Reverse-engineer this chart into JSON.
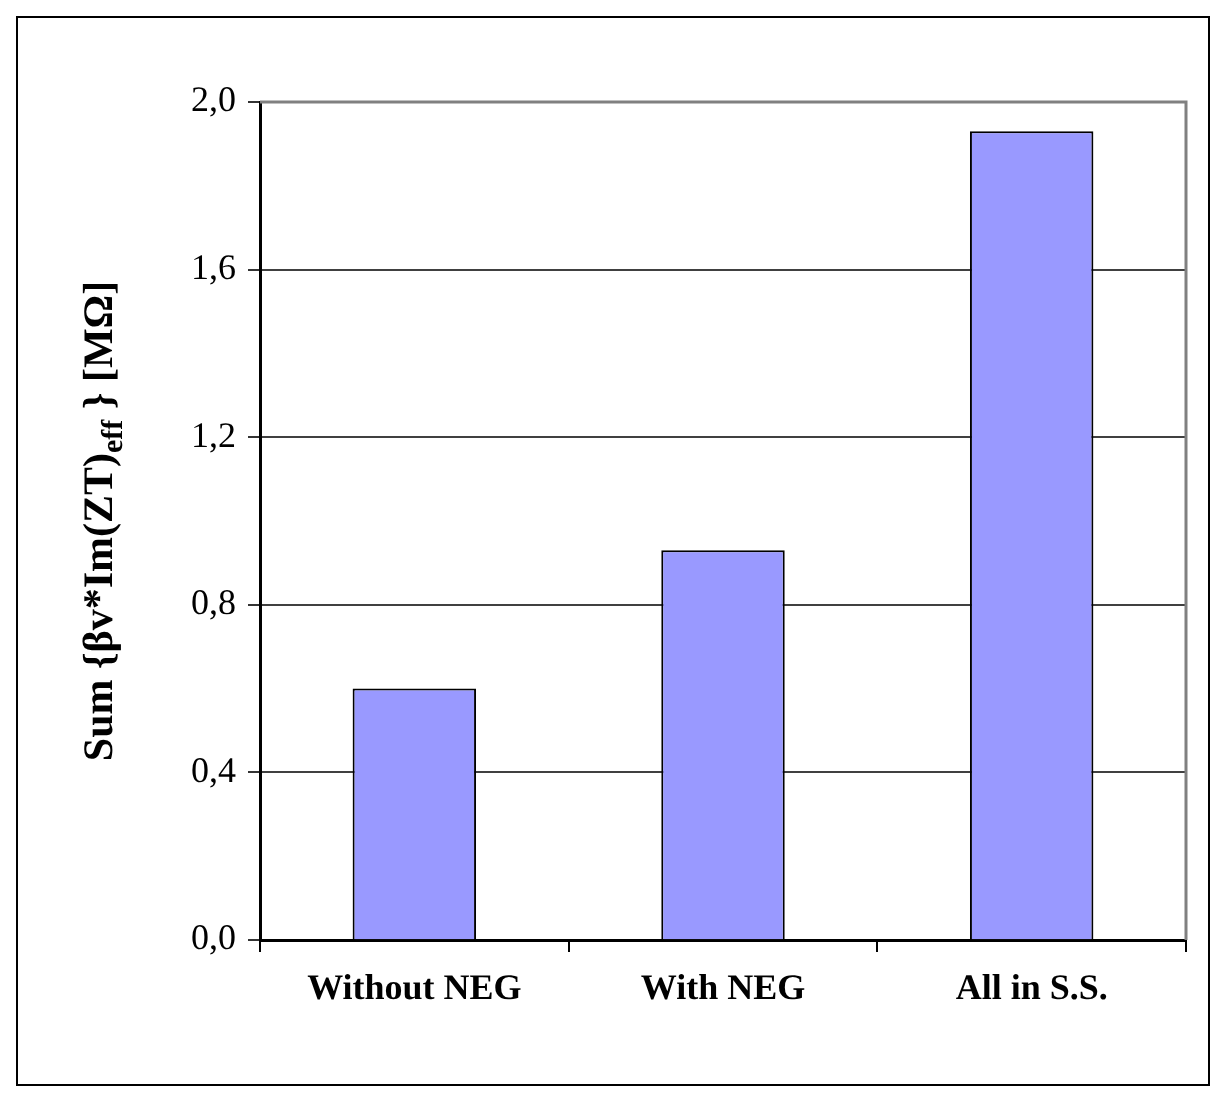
{
  "chart_data": {
    "type": "bar",
    "ylabel": "Sum {βv*Im(ZT)$_{eff}$ } [MΩ]",
    "categories": [
      "Without NEG",
      "With NEG",
      "All in S.S."
    ],
    "values": [
      0.6,
      0.93,
      1.93
    ],
    "color": "#9999ff",
    "ylim": [
      0,
      2
    ],
    "yticks": [
      {
        "value": 0,
        "label": "0,0"
      },
      {
        "value": 0.4,
        "label": "0,4"
      },
      {
        "value": 0.8,
        "label": "0,8"
      },
      {
        "value": 1.2,
        "label": "1,2"
      },
      {
        "value": 1.6,
        "label": "1,6"
      },
      {
        "value": 2,
        "label": "2,0"
      }
    ],
    "grid": "y",
    "legend": false
  }
}
